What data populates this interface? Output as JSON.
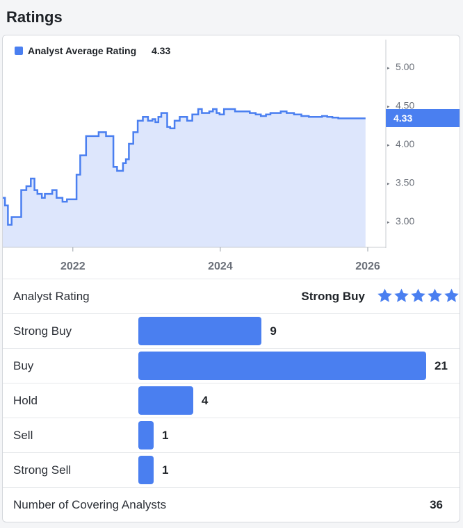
{
  "header": {
    "title": "Ratings"
  },
  "chart_data": {
    "type": "area",
    "legend": {
      "label": "Analyst Average Rating",
      "value": "4.33",
      "placement": "top-left"
    },
    "current_value_label": "4.33",
    "y_ticks": [
      "5.00",
      "4.50",
      "4.00",
      "3.50",
      "3.00"
    ],
    "x_ticks": [
      "2022",
      "2024",
      "2026"
    ],
    "ylim": [
      2.65,
      5.35
    ],
    "xlim": [
      2021.05,
      2026.0
    ],
    "x": [
      2021.05,
      2021.08,
      2021.12,
      2021.17,
      2021.22,
      2021.3,
      2021.37,
      2021.43,
      2021.48,
      2021.52,
      2021.58,
      2021.62,
      2021.68,
      2021.72,
      2021.78,
      2021.82,
      2021.86,
      2021.92,
      2021.98,
      2022.05,
      2022.1,
      2022.18,
      2022.25,
      2022.35,
      2022.45,
      2022.55,
      2022.6,
      2022.68,
      2022.72,
      2022.76,
      2022.82,
      2022.88,
      2022.95,
      2023.02,
      2023.08,
      2023.12,
      2023.16,
      2023.2,
      2023.23,
      2023.28,
      2023.32,
      2023.38,
      2023.45,
      2023.55,
      2023.62,
      2023.7,
      2023.75,
      2023.8,
      2023.85,
      2023.9,
      2023.95,
      2023.99,
      2024.05,
      2024.12,
      2024.2,
      2024.3,
      2024.4,
      2024.48,
      2024.55,
      2024.62,
      2024.68,
      2024.76,
      2024.82,
      2024.9,
      2025.0,
      2025.1,
      2025.2,
      2025.3,
      2025.38,
      2025.45,
      2025.52,
      2025.6,
      2025.7,
      2025.8,
      2025.9,
      2025.97
    ],
    "y": [
      3.3,
      3.2,
      2.95,
      3.05,
      3.05,
      3.4,
      3.45,
      3.55,
      3.4,
      3.35,
      3.3,
      3.35,
      3.35,
      3.4,
      3.3,
      3.3,
      3.25,
      3.28,
      3.28,
      3.6,
      3.85,
      4.1,
      4.1,
      4.15,
      4.1,
      3.7,
      3.65,
      3.75,
      3.8,
      4.0,
      4.15,
      4.3,
      4.35,
      4.3,
      4.32,
      4.28,
      4.35,
      4.4,
      4.4,
      4.22,
      4.2,
      4.3,
      4.35,
      4.3,
      4.38,
      4.45,
      4.4,
      4.4,
      4.42,
      4.45,
      4.4,
      4.38,
      4.45,
      4.45,
      4.42,
      4.42,
      4.4,
      4.38,
      4.36,
      4.38,
      4.4,
      4.4,
      4.42,
      4.4,
      4.38,
      4.36,
      4.35,
      4.35,
      4.36,
      4.35,
      4.34,
      4.33,
      4.33,
      4.33,
      4.33,
      4.33
    ],
    "colors": {
      "line": "#4a7ff0",
      "fill": "#dde6fc",
      "label_bg": "#4a7ff0"
    }
  },
  "breakdown": {
    "summary_label": "Analyst Rating",
    "summary_value": "Strong Buy",
    "stars": 5,
    "max_count": 21,
    "items": [
      {
        "label": "Strong Buy",
        "count": 9
      },
      {
        "label": "Buy",
        "count": 21
      },
      {
        "label": "Hold",
        "count": 4
      },
      {
        "label": "Sell",
        "count": 1
      },
      {
        "label": "Strong Sell",
        "count": 1
      }
    ],
    "total_label": "Number of Covering Analysts",
    "total_value": "36"
  }
}
